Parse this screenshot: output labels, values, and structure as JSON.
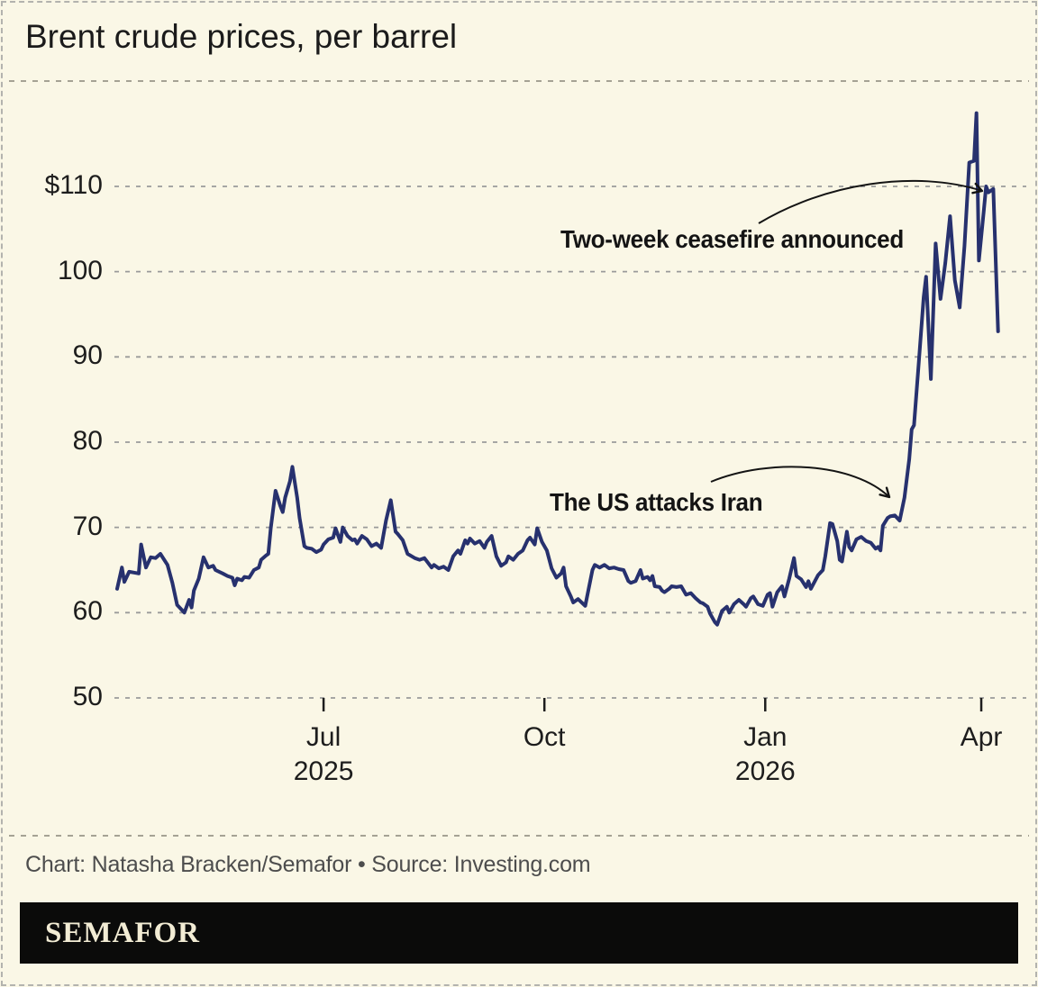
{
  "header": {
    "title": "Brent crude prices, per barrel"
  },
  "annotations": {
    "ceasefire": "Two-week ceasefire announced",
    "attack": "The US attacks Iran"
  },
  "footer": {
    "credit": "Chart: Natasha Bracken/Semafor • Source: Investing.com",
    "logo": "SEMAFOR"
  },
  "colors": {
    "background": "#faf7e6",
    "line": "#27316e",
    "grid": "#9a9a9a",
    "text": "#1d1d1d",
    "annotation": "#141414",
    "logo_bar": "#0b0b0a",
    "logo_text": "#f2ecd4"
  },
  "chart_data": {
    "type": "line",
    "title": "Brent crude prices, per barrel",
    "unit": "USD per barrel",
    "x_axis": {
      "start_date": "2025-04-06",
      "end_date": "2026-04-08",
      "x_unit": "days since start_date",
      "ticks": [
        {
          "label": "Jul",
          "sublabel": "2025",
          "day": 86
        },
        {
          "label": "Oct",
          "sublabel": "",
          "day": 178
        },
        {
          "label": "Jan",
          "sublabel": "2026",
          "day": 270
        },
        {
          "label": "Apr",
          "sublabel": "",
          "day": 360
        }
      ]
    },
    "y_axis": {
      "min": 50,
      "max": 118.6,
      "grid": true,
      "ticks": [
        {
          "label": "$110",
          "value": 110
        },
        {
          "label": "100",
          "value": 100
        },
        {
          "label": "90",
          "value": 90
        },
        {
          "label": "80",
          "value": 80
        },
        {
          "label": "70",
          "value": 70
        },
        {
          "label": "60",
          "value": 60
        },
        {
          "label": "50",
          "value": 50
        }
      ]
    },
    "annotations": [
      {
        "text": "Two-week ceasefire announced",
        "points_to_day": 362,
        "points_to_value": 110
      },
      {
        "text": "The US attacks Iran",
        "points_to_day": 324,
        "points_to_value": 71.4
      }
    ],
    "points": [
      [
        0,
        62.8
      ],
      [
        2,
        65.3
      ],
      [
        3,
        63.6
      ],
      [
        5,
        64.8
      ],
      [
        7,
        64.7
      ],
      [
        9,
        64.6
      ],
      [
        10,
        68
      ],
      [
        12,
        65.3
      ],
      [
        14,
        66.5
      ],
      [
        16,
        66.4
      ],
      [
        18,
        66.9
      ],
      [
        21,
        65.6
      ],
      [
        23,
        63.5
      ],
      [
        25,
        60.9
      ],
      [
        28,
        60
      ],
      [
        30,
        61.5
      ],
      [
        31,
        60.6
      ],
      [
        32,
        62.6
      ],
      [
        34,
        64
      ],
      [
        36,
        66.5
      ],
      [
        38,
        65.3
      ],
      [
        40,
        65.5
      ],
      [
        41,
        65
      ],
      [
        44,
        64.6
      ],
      [
        46,
        64.3
      ],
      [
        48,
        64.1
      ],
      [
        49,
        63.2
      ],
      [
        50,
        64
      ],
      [
        52,
        63.8
      ],
      [
        53,
        64.2
      ],
      [
        55,
        64.1
      ],
      [
        57,
        65
      ],
      [
        59,
        65.3
      ],
      [
        60,
        66.2
      ],
      [
        62,
        66.7
      ],
      [
        63,
        66.9
      ],
      [
        64,
        69.9
      ],
      [
        66,
        74.3
      ],
      [
        68,
        72.5
      ],
      [
        69,
        71.8
      ],
      [
        70,
        73.5
      ],
      [
        72,
        75.4
      ],
      [
        73,
        77.1
      ],
      [
        75,
        73.5
      ],
      [
        76,
        71.1
      ],
      [
        78,
        67.8
      ],
      [
        79,
        67.6
      ],
      [
        81,
        67.5
      ],
      [
        83,
        67.1
      ],
      [
        85,
        67.4
      ],
      [
        86,
        68
      ],
      [
        88,
        68.6
      ],
      [
        90,
        68.8
      ],
      [
        91,
        69.9
      ],
      [
        93,
        68.3
      ],
      [
        94,
        70
      ],
      [
        96,
        69
      ],
      [
        98,
        68.5
      ],
      [
        99,
        68.6
      ],
      [
        100,
        68.1
      ],
      [
        102,
        69
      ],
      [
        104,
        68.6
      ],
      [
        106,
        67.8
      ],
      [
        108,
        68.1
      ],
      [
        110,
        67.6
      ],
      [
        112,
        70.8
      ],
      [
        114,
        73.2
      ],
      [
        116,
        69.5
      ],
      [
        117,
        69.2
      ],
      [
        119,
        68.5
      ],
      [
        121,
        66.9
      ],
      [
        124,
        66.4
      ],
      [
        126,
        66.2
      ],
      [
        128,
        66.4
      ],
      [
        131,
        65.3
      ],
      [
        132,
        65.6
      ],
      [
        134,
        65.2
      ],
      [
        136,
        65.4
      ],
      [
        138,
        65
      ],
      [
        140,
        66.6
      ],
      [
        142,
        67.3
      ],
      [
        143,
        66.9
      ],
      [
        145,
        68.5
      ],
      [
        146,
        68.1
      ],
      [
        147,
        68.7
      ],
      [
        149,
        68.1
      ],
      [
        151,
        68.4
      ],
      [
        153,
        67.6
      ],
      [
        154,
        68.3
      ],
      [
        156,
        69
      ],
      [
        158,
        66.6
      ],
      [
        160,
        65.5
      ],
      [
        162,
        65.9
      ],
      [
        163,
        66.6
      ],
      [
        165,
        66.2
      ],
      [
        167,
        66.9
      ],
      [
        169,
        67.3
      ],
      [
        171,
        68.5
      ],
      [
        172,
        68.8
      ],
      [
        174,
        68
      ],
      [
        175,
        69.9
      ],
      [
        177,
        68.3
      ],
      [
        179,
        67.3
      ],
      [
        181,
        65.2
      ],
      [
        183,
        64.1
      ],
      [
        185,
        64.6
      ],
      [
        186,
        65.3
      ],
      [
        187,
        63.1
      ],
      [
        189,
        61.9
      ],
      [
        190,
        61.2
      ],
      [
        192,
        61.6
      ],
      [
        195,
        60.8
      ],
      [
        198,
        65
      ],
      [
        199,
        65.6
      ],
      [
        201,
        65.3
      ],
      [
        203,
        65.6
      ],
      [
        205,
        65.2
      ],
      [
        207,
        65.3
      ],
      [
        209,
        65.1
      ],
      [
        211,
        65
      ],
      [
        213,
        63.7
      ],
      [
        214,
        63.5
      ],
      [
        216,
        63.7
      ],
      [
        218,
        65
      ],
      [
        219,
        64
      ],
      [
        221,
        64.2
      ],
      [
        222,
        63.8
      ],
      [
        223,
        64.3
      ],
      [
        224,
        63.1
      ],
      [
        226,
        63
      ],
      [
        227,
        62.6
      ],
      [
        228,
        62.4
      ],
      [
        230,
        62.8
      ],
      [
        231,
        63.1
      ],
      [
        233,
        63
      ],
      [
        235,
        63.1
      ],
      [
        237,
        62.1
      ],
      [
        239,
        62.3
      ],
      [
        241,
        61.7
      ],
      [
        243,
        61.2
      ],
      [
        244,
        61.1
      ],
      [
        246,
        60.7
      ],
      [
        247,
        59.9
      ],
      [
        249,
        58.9
      ],
      [
        250,
        58.6
      ],
      [
        252,
        60.2
      ],
      [
        254,
        60.7
      ],
      [
        255,
        60
      ],
      [
        257,
        61
      ],
      [
        259,
        61.5
      ],
      [
        261,
        61
      ],
      [
        262,
        60.7
      ],
      [
        264,
        61.7
      ],
      [
        265,
        61.9
      ],
      [
        267,
        61
      ],
      [
        269,
        60.8
      ],
      [
        271,
        62.1
      ],
      [
        272,
        62.3
      ],
      [
        273,
        60.7
      ],
      [
        275,
        62.4
      ],
      [
        277,
        63.1
      ],
      [
        278,
        61.9
      ],
      [
        280,
        64
      ],
      [
        282,
        66.4
      ],
      [
        283,
        64.3
      ],
      [
        284,
        64.1
      ],
      [
        285,
        63.9
      ],
      [
        287,
        63
      ],
      [
        288,
        63.7
      ],
      [
        289,
        62.8
      ],
      [
        292,
        64.4
      ],
      [
        294,
        65
      ],
      [
        295,
        66.6
      ],
      [
        297,
        70.5
      ],
      [
        298,
        70.4
      ],
      [
        300,
        68.4
      ],
      [
        301,
        66.2
      ],
      [
        302,
        66
      ],
      [
        304,
        69.5
      ],
      [
        305,
        67.7
      ],
      [
        306,
        67.3
      ],
      [
        308,
        68.6
      ],
      [
        310,
        68.9
      ],
      [
        312,
        68.4
      ],
      [
        314,
        68.2
      ],
      [
        316,
        67.5
      ],
      [
        317,
        67.7
      ],
      [
        318,
        67.3
      ],
      [
        319,
        70.2
      ],
      [
        321,
        71.1
      ],
      [
        322,
        71.3
      ],
      [
        324,
        71.4
      ],
      [
        326,
        70.8
      ],
      [
        328,
        73.5
      ],
      [
        330,
        78
      ],
      [
        331,
        81.5
      ],
      [
        332,
        82
      ],
      [
        334,
        89.5
      ],
      [
        336,
        97
      ],
      [
        337,
        99.4
      ],
      [
        339,
        87.4
      ],
      [
        341,
        103.3
      ],
      [
        343,
        96.8
      ],
      [
        345,
        101
      ],
      [
        347,
        106.5
      ],
      [
        349,
        99
      ],
      [
        351,
        95.8
      ],
      [
        353,
        103
      ],
      [
        355,
        112.8
      ],
      [
        357,
        113
      ],
      [
        358,
        118.6
      ],
      [
        359,
        101.3
      ],
      [
        361,
        107
      ],
      [
        362,
        110
      ],
      [
        363,
        109.3
      ],
      [
        365,
        109.7
      ],
      [
        367,
        93
      ]
    ]
  }
}
